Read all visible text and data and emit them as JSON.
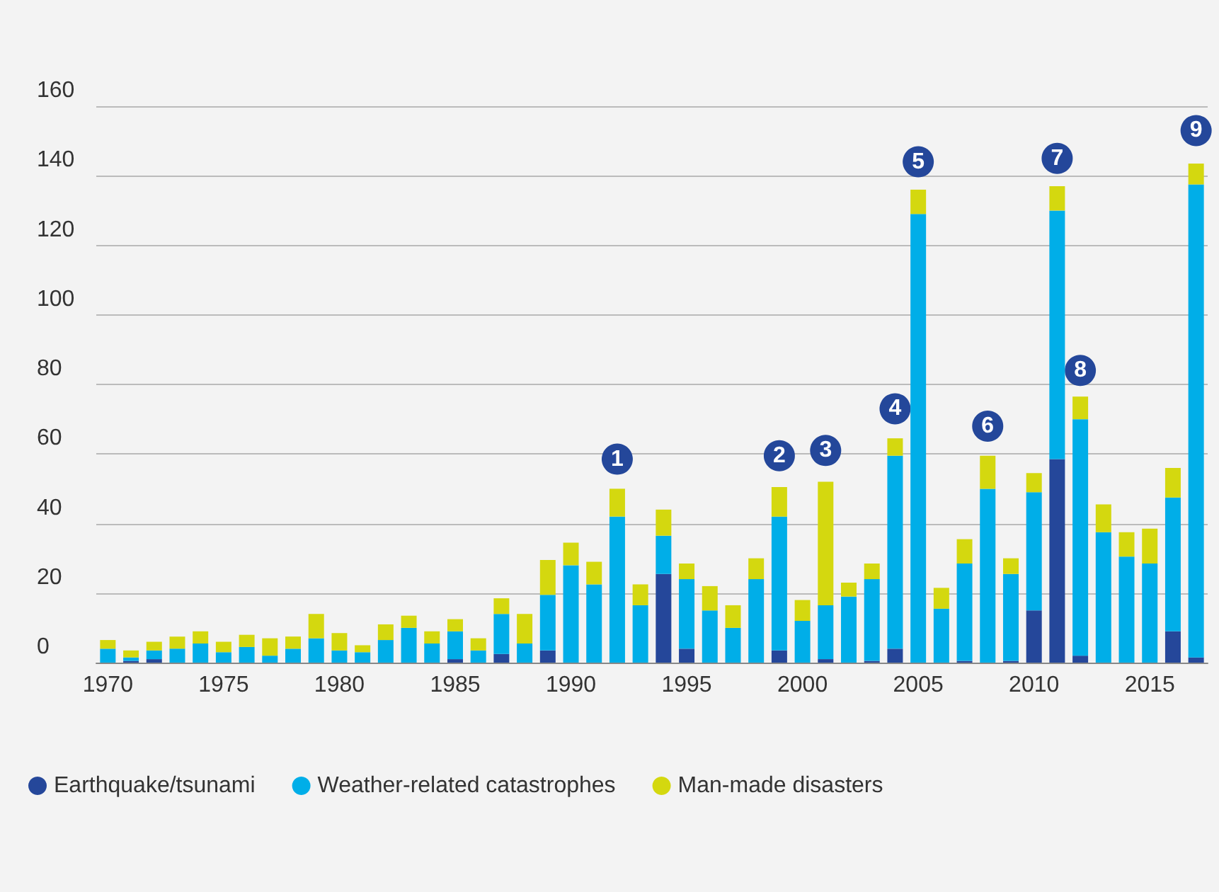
{
  "chart_data": {
    "type": "bar",
    "stacked": true,
    "grid": "y",
    "legend": "bottom",
    "x": [
      1970,
      1971,
      1972,
      1973,
      1974,
      1975,
      1976,
      1977,
      1978,
      1979,
      1980,
      1981,
      1982,
      1983,
      1984,
      1985,
      1986,
      1987,
      1988,
      1989,
      1990,
      1991,
      1992,
      1993,
      1994,
      1995,
      1996,
      1997,
      1998,
      1999,
      2000,
      2001,
      2002,
      2003,
      2004,
      2005,
      2006,
      2007,
      2008,
      2009,
      2010,
      2011,
      2012,
      2013,
      2014,
      2015,
      2016,
      2017
    ],
    "xlim": [
      1969.5,
      2017.5
    ],
    "xticks": [
      1970,
      1975,
      1980,
      1985,
      1990,
      1995,
      2000,
      2005,
      2010,
      2015
    ],
    "ylim": [
      0,
      160
    ],
    "yticks": [
      0,
      20,
      40,
      60,
      80,
      100,
      120,
      140,
      160
    ],
    "series": [
      {
        "name": "Earthquake/tsunami",
        "color": "#25479a",
        "values": [
          0,
          0.5,
          1,
          0,
          0,
          0,
          0,
          0,
          0,
          0,
          0,
          0,
          0,
          0,
          0,
          1,
          0,
          2.5,
          0,
          3.5,
          0,
          0,
          0,
          0,
          25.5,
          4,
          0,
          0,
          0,
          3.5,
          0,
          1,
          0,
          0.5,
          4,
          0,
          0,
          0.5,
          0,
          0.5,
          15,
          58.5,
          2,
          0,
          0,
          0,
          9,
          1.5
        ]
      },
      {
        "name": "Weather-related catastrophes",
        "color": "#00aee8",
        "values": [
          4,
          1,
          2.5,
          4,
          5.5,
          3,
          4.5,
          2,
          4,
          7,
          3.5,
          3,
          6.5,
          10,
          5.5,
          8,
          3.5,
          11.5,
          5.5,
          16,
          28,
          22.5,
          42,
          16.5,
          11,
          20,
          15,
          10,
          24,
          38.5,
          12,
          15.5,
          19,
          23.5,
          55.5,
          129,
          15.5,
          28,
          50,
          25,
          34,
          71.5,
          68,
          37.5,
          30.5,
          28.5,
          38.5,
          136
        ]
      },
      {
        "name": "Man-made disasters",
        "color": "#d4d80f",
        "values": [
          2.5,
          2,
          2.5,
          3.5,
          3.5,
          3,
          3.5,
          5,
          3.5,
          7,
          5,
          2,
          4.5,
          3.5,
          3.5,
          3.5,
          3.5,
          4.5,
          8.5,
          10,
          6.5,
          6.5,
          8,
          6,
          7.5,
          4.5,
          7,
          6.5,
          6,
          8.5,
          6,
          35.5,
          4,
          4.5,
          5,
          7,
          6,
          7,
          9.5,
          4.5,
          5.5,
          7,
          6.5,
          8,
          7,
          10,
          8.5,
          6
        ]
      }
    ],
    "annotations": [
      {
        "text": "1",
        "x": 1992,
        "y": 58.5
      },
      {
        "text": "2",
        "x": 1999,
        "y": 59.5
      },
      {
        "text": "3",
        "x": 2001,
        "y": 61
      },
      {
        "text": "4",
        "x": 2004,
        "y": 73
      },
      {
        "text": "5",
        "x": 2005,
        "y": 144
      },
      {
        "text": "6",
        "x": 2008,
        "y": 68
      },
      {
        "text": "7",
        "x": 2011,
        "y": 145
      },
      {
        "text": "8",
        "x": 2012,
        "y": 84
      },
      {
        "text": "9",
        "x": 2017,
        "y": 153
      }
    ]
  }
}
